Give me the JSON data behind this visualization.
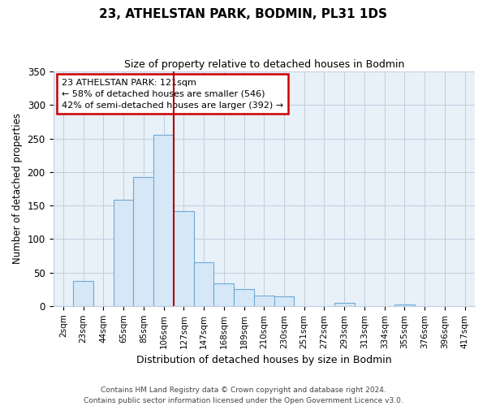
{
  "title": "23, ATHELSTAN PARK, BODMIN, PL31 1DS",
  "subtitle": "Size of property relative to detached houses in Bodmin",
  "xlabel": "Distribution of detached houses by size in Bodmin",
  "ylabel": "Number of detached properties",
  "bar_labels": [
    "2sqm",
    "23sqm",
    "44sqm",
    "65sqm",
    "85sqm",
    "106sqm",
    "127sqm",
    "147sqm",
    "168sqm",
    "189sqm",
    "210sqm",
    "230sqm",
    "251sqm",
    "272sqm",
    "293sqm",
    "313sqm",
    "334sqm",
    "355sqm",
    "376sqm",
    "396sqm",
    "417sqm"
  ],
  "bar_values": [
    0,
    37,
    0,
    158,
    193,
    255,
    142,
    65,
    34,
    25,
    16,
    14,
    0,
    0,
    5,
    0,
    0,
    2,
    0,
    0,
    0
  ],
  "bar_color": "#d6e8f7",
  "bar_edge_color": "#6fa8d4",
  "vline_x_index": 6,
  "vline_color": "#aa0000",
  "ylim": [
    0,
    350
  ],
  "yticks": [
    0,
    50,
    100,
    150,
    200,
    250,
    300,
    350
  ],
  "annotation_title": "23 ATHELSTAN PARK: 121sqm",
  "annotation_line1": "← 58% of detached houses are smaller (546)",
  "annotation_line2": "42% of semi-detached houses are larger (392) →",
  "footer_line1": "Contains HM Land Registry data © Crown copyright and database right 2024.",
  "footer_line2": "Contains public sector information licensed under the Open Government Licence v3.0.",
  "plot_bg_color": "#e8f0f8",
  "grid_color": "#c0cfe0",
  "ann_edge_color": "#cc0000",
  "fig_bg_color": "#ffffff"
}
